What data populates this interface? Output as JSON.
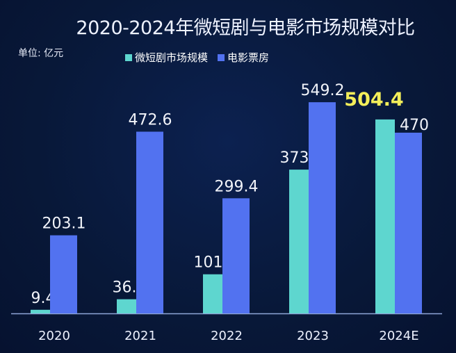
{
  "chart_data": {
    "type": "bar",
    "title": "2020-2024年微短剧与电影市场规模对比",
    "unit_label": "单位: 亿元",
    "categories": [
      "2020",
      "2021",
      "2022",
      "2023",
      "2024E"
    ],
    "series": [
      {
        "name": "微短剧市场规模",
        "color": "#5ed6cf",
        "values": [
          9.4,
          36.8,
          101.7,
          373.9,
          504.4
        ]
      },
      {
        "name": "电影票房",
        "color": "#5272f0",
        "values": [
          203.1,
          472.6,
          299.4,
          549.2,
          470
        ]
      }
    ],
    "value_labels": [
      [
        "9.4",
        "36.8",
        "101.7",
        "373.9",
        "504.4"
      ],
      [
        "203.1",
        "472.6",
        "299.4",
        "549.2",
        "470"
      ]
    ],
    "highlight": {
      "series": 0,
      "index": 4,
      "color": "#f3ee5a"
    },
    "ylim": [
      0,
      600
    ],
    "grid": false,
    "legend_position": "top"
  }
}
